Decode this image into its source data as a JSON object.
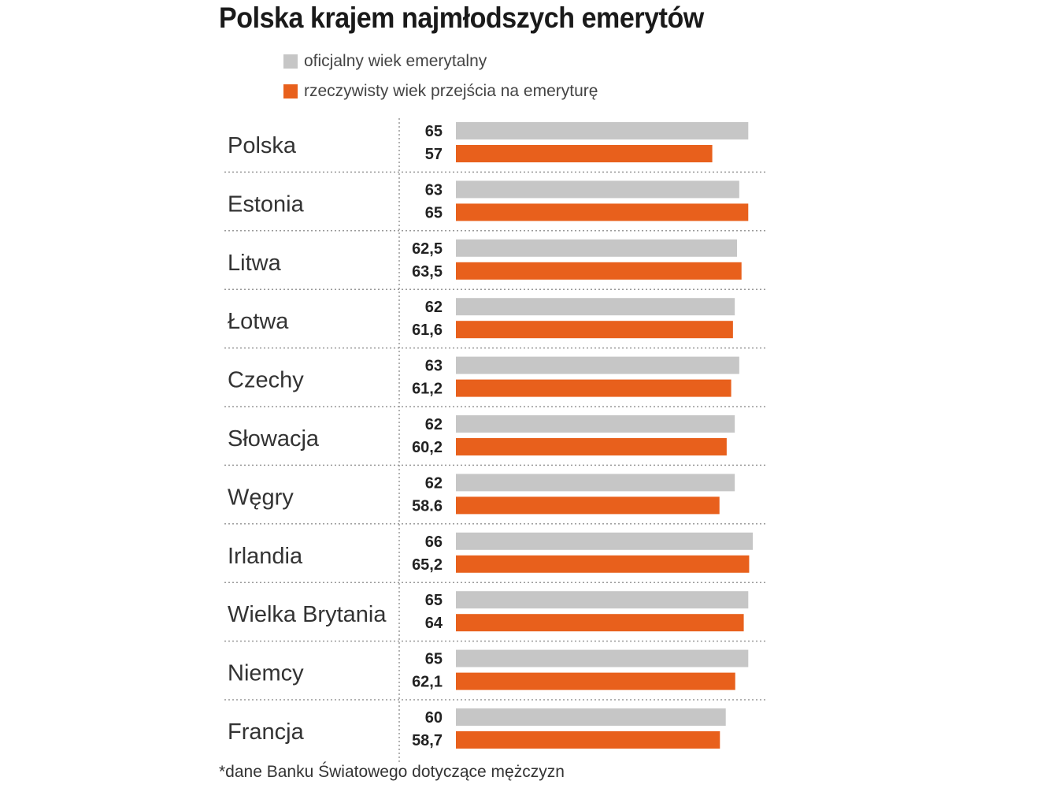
{
  "chart_data": {
    "type": "bar",
    "title": "Polska krajem najmłodszych emerytów",
    "categories": [
      "Polska",
      "Estonia",
      "Litwa",
      "Łotwa",
      "Czechy",
      "Słowacja",
      "Węgry",
      "Irlandia",
      "Wielka Brytania",
      "Niemcy",
      "Francja"
    ],
    "series": [
      {
        "name": "oficjalny wiek emerytalny",
        "color": "#c6c6c6",
        "values": [
          65,
          63,
          62.5,
          62,
          63,
          62,
          62,
          66,
          65,
          65,
          60
        ],
        "labels": [
          "65",
          "63",
          "62,5",
          "62",
          "63",
          "62",
          "62",
          "66",
          "65",
          "65",
          "60"
        ]
      },
      {
        "name": "rzeczywisty wiek przejścia na emeryturę",
        "color": "#e8601c",
        "values": [
          57,
          65,
          63.5,
          61.6,
          61.2,
          60.2,
          58.6,
          65.2,
          64,
          62.1,
          58.7
        ],
        "labels": [
          "57",
          "65",
          "63,5",
          "61,6",
          "61,2",
          "60,2",
          "58.6",
          "65,2",
          "64",
          "62,1",
          "58,7"
        ]
      }
    ],
    "xlim": [
      0,
      66
    ],
    "orientation": "horizontal",
    "grid": false,
    "legend": "top"
  },
  "footnote": "*dane Banku Światowego dotyczące mężczyzn"
}
